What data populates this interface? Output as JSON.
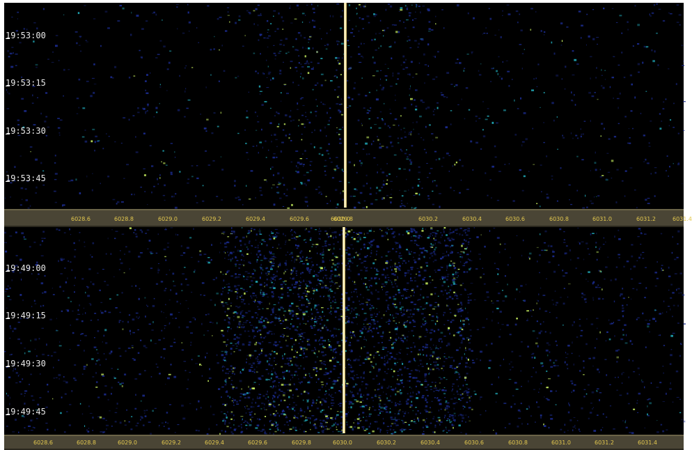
{
  "top_waterfall": {
    "time_labels": [
      "19:53:00",
      "19:53:15",
      "19:53:30",
      "19:53:45"
    ],
    "frequency_ticks": [
      "6028.6",
      "6028.8",
      "6029.0",
      "6029.2",
      "6029.4",
      "6029.6",
      "6029.8",
      "6030.0",
      "6030.2",
      "6030.4",
      "6030.6",
      "6030.8",
      "6031.0",
      "6031.2",
      "6031.4"
    ]
  },
  "bottom_waterfall": {
    "time_labels": [
      "19:49:00",
      "19:49:15",
      "19:49:30",
      "19:49:45"
    ],
    "frequency_ticks": [
      "6028.6",
      "6028.8",
      "6029.0",
      "6029.2",
      "6029.4",
      "6029.6",
      "6029.8",
      "6030.0",
      "6030.2",
      "6030.4",
      "6030.6",
      "6030.8",
      "6031.0",
      "6031.2",
      "6031.4"
    ]
  },
  "colors": {
    "background": "#000000",
    "signal_dim": "#1a2a8a",
    "signal_mid": "#1fa2b0",
    "signal_bright": "#c8f060",
    "carrier": "#fffbe0",
    "axis_bg": "#4a4535",
    "axis_text": "#e3c84f"
  }
}
